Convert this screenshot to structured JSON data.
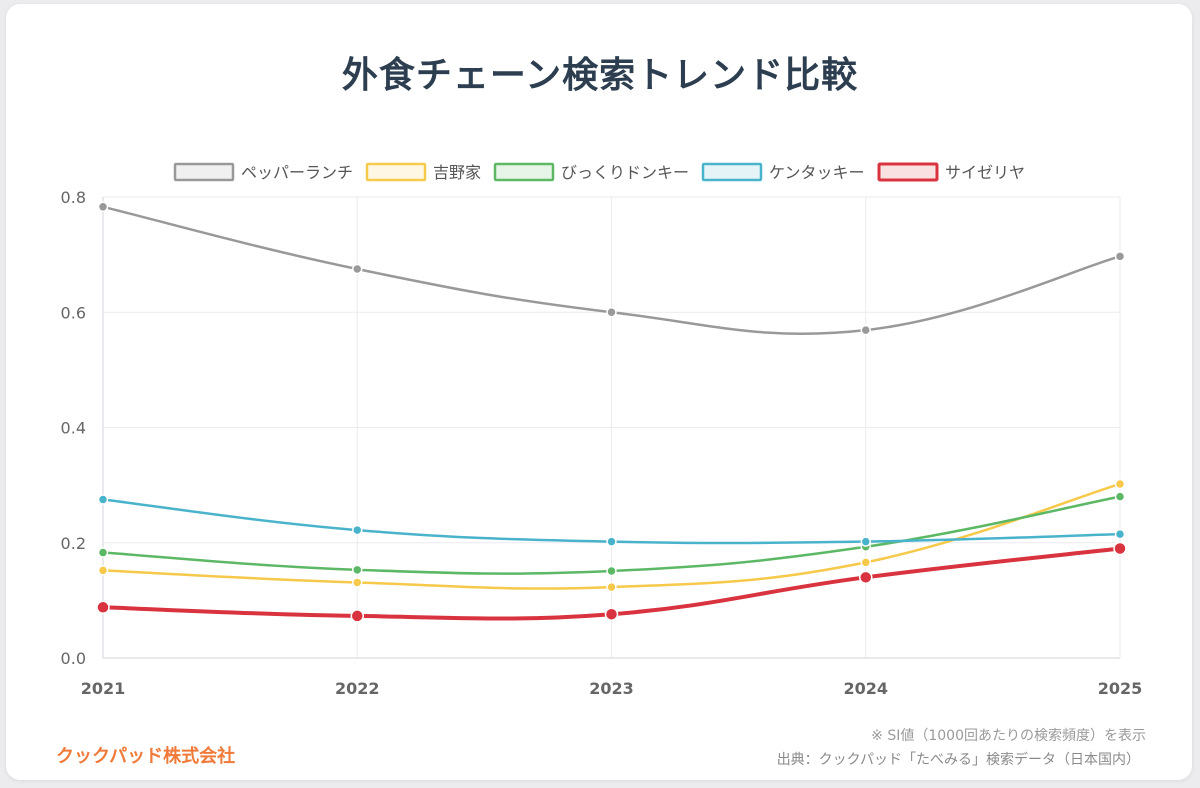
{
  "colors": {
    "title": "#2c3e50",
    "brand": "#f07a3a",
    "grid": "#ebebf0",
    "axis": "#666666"
  },
  "page": {
    "title": "外食チェーン検索トレンド比較",
    "note": "※ SI値（1000回あたりの検索頻度）を表示",
    "source": "出典：クックパッド「たべみる」検索データ（日本国内）",
    "brand": "クックパッド株式会社"
  },
  "chart_data": {
    "type": "line",
    "title": "外食チェーン検索トレンド比較",
    "x": [
      "2021",
      "2022",
      "2023",
      "2024",
      "2025"
    ],
    "ylim": [
      0,
      0.8
    ],
    "yticks": [
      "0.0",
      "0.2",
      "0.4",
      "0.6",
      "0.8"
    ],
    "grid": true,
    "legend": "top",
    "series": [
      {
        "name": "ペッパーランチ",
        "color": "#999999",
        "values": [
          0.783,
          0.675,
          0.6,
          0.569,
          0.697
        ]
      },
      {
        "name": "吉野家",
        "color": "#f6c94a",
        "values": [
          0.152,
          0.131,
          0.123,
          0.166,
          0.302
        ]
      },
      {
        "name": "びっくりドンキー",
        "color": "#5cb865",
        "values": [
          0.183,
          0.153,
          0.151,
          0.193,
          0.28
        ]
      },
      {
        "name": "ケンタッキー",
        "color": "#4ab3cc",
        "values": [
          0.275,
          0.222,
          0.202,
          0.202,
          0.215
        ]
      },
      {
        "name": "サイゼリヤ",
        "color": "#d9333f",
        "values": [
          0.088,
          0.073,
          0.076,
          0.14,
          0.19
        ]
      }
    ]
  }
}
